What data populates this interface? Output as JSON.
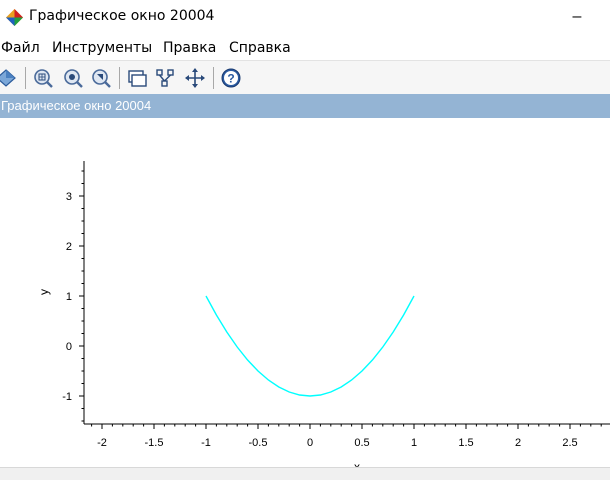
{
  "window": {
    "title": "Графическое окно 20004",
    "minimize_label": "–"
  },
  "menu": {
    "items": [
      {
        "label": "Файл"
      },
      {
        "label": "Инструменты"
      },
      {
        "label": "Правка"
      },
      {
        "label": "Справка"
      }
    ]
  },
  "toolbar": {
    "buttons": [
      {
        "icon": "rotate-icon"
      },
      {
        "icon": "zoom-in-icon"
      },
      {
        "icon": "zoom-reset-icon"
      },
      {
        "icon": "zoom-area-icon"
      },
      {
        "icon": "datatip-icon"
      },
      {
        "icon": "datatip-edit-icon"
      },
      {
        "icon": "pan-icon"
      },
      {
        "icon": "help-icon"
      }
    ]
  },
  "figure": {
    "header": "Графическое окно 20004"
  },
  "chart_data": {
    "type": "line",
    "title": "",
    "xlabel": "x",
    "ylabel": "y",
    "xlim": [
      -2.25,
      2.9
    ],
    "ylim": [
      -1.5,
      3.7
    ],
    "xticks": [
      -2,
      -1.5,
      -1,
      -0.5,
      0,
      0.5,
      1,
      1.5,
      2,
      2.5
    ],
    "xtick_labels": [
      "-2",
      "-1.5",
      "-1",
      "-0.5",
      "0",
      "0.5",
      "1",
      "1.5",
      "2",
      "2.5"
    ],
    "yticks": [
      -1,
      0,
      1,
      2,
      3
    ],
    "ytick_labels": [
      "-1",
      "0",
      "1",
      "2",
      "3"
    ],
    "grid": false,
    "series": [
      {
        "color": "#00ffff",
        "x": [
          -1,
          -0.9,
          -0.8,
          -0.7,
          -0.6,
          -0.5,
          -0.4,
          -0.3,
          -0.2,
          -0.1,
          0,
          0.1,
          0.2,
          0.3,
          0.4,
          0.5,
          0.6,
          0.7,
          0.8,
          0.9,
          1
        ],
        "y": [
          1,
          0.62,
          0.28,
          -0.02,
          -0.28,
          -0.5,
          -0.68,
          -0.82,
          -0.92,
          -0.98,
          -1,
          -0.98,
          -0.92,
          -0.82,
          -0.68,
          -0.5,
          -0.28,
          -0.02,
          0.28,
          0.62,
          1
        ]
      }
    ]
  }
}
